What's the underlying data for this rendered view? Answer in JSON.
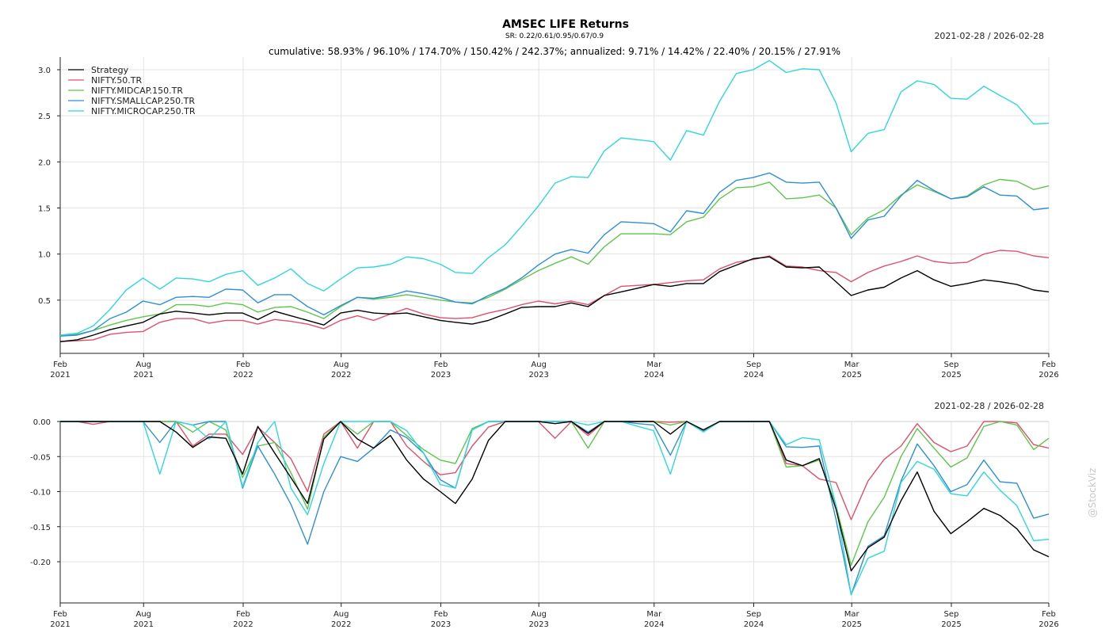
{
  "header": {
    "title": "AMSEC LIFE Returns",
    "sr_line": "SR: 0.22/0.61/0.95/0.67/0.9",
    "cumulative_line": "cumulative: 58.93% / 96.10% / 174.70% / 150.42% / 242.37%; annualized: 9.71% / 14.42% / 22.40% / 20.15% / 27.91%",
    "date_range_top": "2021-02-28 / 2026-02-28",
    "date_range_bottom": "2021-02-28 / 2026-02-28"
  },
  "watermark": "@StockViz",
  "chart_data": [
    {
      "type": "line",
      "title": "AMSEC LIFE Returns",
      "ylim": [
        0,
        3.1
      ],
      "yticks": [
        "0.5",
        "1.0",
        "1.5",
        "2.0",
        "2.5",
        "3.0"
      ],
      "ytick_values": [
        0.5,
        1.0,
        1.5,
        2.0,
        2.5,
        3.0
      ],
      "xlim": [
        "2021-02-28",
        "2026-02-28"
      ],
      "xticks": [
        {
          "date": "2021-02-28",
          "month": "Feb",
          "year": "2021"
        },
        {
          "date": "2021-08-01",
          "month": "Aug",
          "year": "2021"
        },
        {
          "date": "2022-02-01",
          "month": "Feb",
          "year": "2022"
        },
        {
          "date": "2022-08-01",
          "month": "Aug",
          "year": "2022"
        },
        {
          "date": "2023-02-01",
          "month": "Feb",
          "year": "2023"
        },
        {
          "date": "2023-08-01",
          "month": "Aug",
          "year": "2023"
        },
        {
          "date": "2024-03-01",
          "month": "Mar",
          "year": "2024"
        },
        {
          "date": "2024-09-01",
          "month": "Sep",
          "year": "2024"
        },
        {
          "date": "2025-03-01",
          "month": "Mar",
          "year": "2025"
        },
        {
          "date": "2025-09-01",
          "month": "Sep",
          "year": "2025"
        },
        {
          "date": "2026-02-28",
          "month": "Feb",
          "year": "2026"
        }
      ],
      "grid": true,
      "legend": "top-left",
      "x": [
        "2021-02-28",
        "2021-03-31",
        "2021-04-30",
        "2021-05-31",
        "2021-06-30",
        "2021-07-31",
        "2021-08-31",
        "2021-09-30",
        "2021-10-31",
        "2021-11-30",
        "2021-12-31",
        "2022-01-31",
        "2022-02-28",
        "2022-03-31",
        "2022-04-30",
        "2022-05-31",
        "2022-06-30",
        "2022-07-31",
        "2022-08-31",
        "2022-09-30",
        "2022-10-31",
        "2022-11-30",
        "2022-12-31",
        "2023-01-31",
        "2023-02-28",
        "2023-03-31",
        "2023-04-30",
        "2023-05-31",
        "2023-06-30",
        "2023-07-31",
        "2023-08-31",
        "2023-09-30",
        "2023-10-31",
        "2023-11-30",
        "2023-12-31",
        "2024-01-31",
        "2024-02-29",
        "2024-03-31",
        "2024-04-30",
        "2024-05-31",
        "2024-06-30",
        "2024-07-31",
        "2024-08-31",
        "2024-09-30",
        "2024-10-31",
        "2024-11-30",
        "2024-12-31",
        "2025-01-31",
        "2025-02-28",
        "2025-03-31",
        "2025-04-30",
        "2025-05-31",
        "2025-06-30",
        "2025-07-31",
        "2025-08-31",
        "2025-09-30",
        "2025-10-31",
        "2025-11-30",
        "2025-12-31",
        "2026-01-31",
        "2026-02-28"
      ],
      "series": [
        {
          "name": "Strategy",
          "color": "#000000",
          "values": [
            0.05,
            0.07,
            0.12,
            0.18,
            0.22,
            0.26,
            0.35,
            0.38,
            0.36,
            0.34,
            0.36,
            0.36,
            0.29,
            0.38,
            0.33,
            0.28,
            0.23,
            0.36,
            0.39,
            0.36,
            0.35,
            0.36,
            0.32,
            0.28,
            0.26,
            0.24,
            0.28,
            0.35,
            0.42,
            0.43,
            0.43,
            0.47,
            0.43,
            0.55,
            0.59,
            0.63,
            0.67,
            0.65,
            0.68,
            0.68,
            0.81,
            0.88,
            0.95,
            0.97,
            0.86,
            0.85,
            0.86,
            0.7,
            0.55,
            0.61,
            0.64,
            0.74,
            0.82,
            0.72,
            0.65,
            0.68,
            0.72,
            0.7,
            0.67,
            0.61,
            0.59
          ]
        },
        {
          "name": "NIFTY.50.TR",
          "color": "#e0506b",
          "values": [
            0.05,
            0.06,
            0.07,
            0.13,
            0.15,
            0.16,
            0.26,
            0.3,
            0.3,
            0.25,
            0.28,
            0.28,
            0.24,
            0.29,
            0.27,
            0.24,
            0.19,
            0.28,
            0.33,
            0.28,
            0.35,
            0.41,
            0.35,
            0.31,
            0.3,
            0.31,
            0.36,
            0.4,
            0.45,
            0.49,
            0.46,
            0.49,
            0.45,
            0.55,
            0.65,
            0.66,
            0.67,
            0.69,
            0.71,
            0.72,
            0.84,
            0.91,
            0.94,
            0.98,
            0.87,
            0.86,
            0.82,
            0.8,
            0.7,
            0.8,
            0.87,
            0.92,
            0.98,
            0.92,
            0.9,
            0.91,
            1.0,
            1.04,
            1.03,
            0.98,
            0.96
          ]
        },
        {
          "name": "NIFTY.MIDCAP.150.TR",
          "color": "#5dc74b",
          "values": [
            0.12,
            0.13,
            0.17,
            0.23,
            0.28,
            0.32,
            0.35,
            0.45,
            0.45,
            0.43,
            0.47,
            0.45,
            0.37,
            0.42,
            0.43,
            0.37,
            0.3,
            0.43,
            0.53,
            0.51,
            0.53,
            0.56,
            0.53,
            0.5,
            0.48,
            0.47,
            0.53,
            0.62,
            0.72,
            0.82,
            0.9,
            0.97,
            0.89,
            1.08,
            1.22,
            1.22,
            1.22,
            1.21,
            1.35,
            1.4,
            1.6,
            1.72,
            1.73,
            1.78,
            1.6,
            1.61,
            1.64,
            1.5,
            1.21,
            1.39,
            1.48,
            1.64,
            1.75,
            1.68,
            1.6,
            1.63,
            1.75,
            1.81,
            1.79,
            1.7,
            1.74
          ]
        },
        {
          "name": "NIFTY.SMALLCAP.250.TR",
          "color": "#2f8fd6",
          "values": [
            0.11,
            0.12,
            0.17,
            0.3,
            0.37,
            0.49,
            0.45,
            0.53,
            0.54,
            0.53,
            0.62,
            0.61,
            0.47,
            0.56,
            0.56,
            0.43,
            0.34,
            0.44,
            0.53,
            0.52,
            0.55,
            0.6,
            0.57,
            0.53,
            0.48,
            0.46,
            0.55,
            0.63,
            0.74,
            0.88,
            1.0,
            1.05,
            1.01,
            1.21,
            1.35,
            1.34,
            1.33,
            1.24,
            1.47,
            1.44,
            1.67,
            1.8,
            1.83,
            1.88,
            1.78,
            1.77,
            1.78,
            1.5,
            1.17,
            1.37,
            1.41,
            1.63,
            1.8,
            1.69,
            1.6,
            1.62,
            1.73,
            1.64,
            1.63,
            1.48,
            1.5
          ]
        },
        {
          "name": "NIFTY.MICROCAP.250.TR",
          "color": "#2fd8d8",
          "values": [
            0.12,
            0.14,
            0.22,
            0.4,
            0.61,
            0.74,
            0.62,
            0.74,
            0.73,
            0.7,
            0.78,
            0.82,
            0.66,
            0.74,
            0.84,
            0.68,
            0.6,
            0.73,
            0.85,
            0.86,
            0.89,
            0.97,
            0.95,
            0.89,
            0.8,
            0.79,
            0.96,
            1.1,
            1.3,
            1.52,
            1.77,
            1.84,
            1.83,
            2.12,
            2.26,
            2.24,
            2.22,
            2.02,
            2.34,
            2.29,
            2.66,
            2.96,
            3.0,
            3.1,
            2.97,
            3.01,
            3.0,
            2.64,
            2.11,
            2.31,
            2.35,
            2.76,
            2.88,
            2.84,
            2.69,
            2.68,
            2.82,
            2.72,
            2.62,
            2.41,
            2.42
          ]
        }
      ]
    },
    {
      "type": "line",
      "ylim": [
        -0.25,
        0.0
      ],
      "yticks": [
        "-0.20",
        "-0.15",
        "-0.10",
        "-0.05",
        "0.00"
      ],
      "ytick_values": [
        -0.2,
        -0.15,
        -0.1,
        -0.05,
        0.0
      ],
      "grid": true,
      "x_from_first_chart": true,
      "series": [
        {
          "name": "Strategy",
          "color": "#000000",
          "values": [
            0,
            0,
            0,
            0,
            0,
            0,
            0,
            -0.015,
            -0.037,
            -0.022,
            -0.024,
            -0.075,
            -0.007,
            -0.045,
            -0.08,
            -0.117,
            -0.025,
            0,
            -0.025,
            -0.038,
            -0.02,
            -0.055,
            -0.082,
            -0.1,
            -0.117,
            -0.082,
            -0.027,
            0,
            0,
            0,
            -0.003,
            0,
            -0.017,
            0,
            0,
            0,
            0,
            -0.018,
            0,
            -0.012,
            0,
            0,
            0,
            0,
            -0.055,
            -0.063,
            -0.053,
            -0.125,
            -0.213,
            -0.18,
            -0.165,
            -0.113,
            -0.072,
            -0.128,
            -0.16,
            -0.143,
            -0.124,
            -0.134,
            -0.153,
            -0.183,
            -0.193
          ]
        },
        {
          "name": "NIFTY.50.TR",
          "color": "#e0506b",
          "values": [
            0,
            0,
            -0.004,
            0,
            0,
            0,
            0,
            0,
            -0.035,
            -0.018,
            -0.018,
            -0.047,
            -0.008,
            -0.03,
            -0.053,
            -0.1,
            -0.018,
            0,
            -0.038,
            0,
            0,
            -0.035,
            -0.057,
            -0.076,
            -0.073,
            -0.035,
            -0.008,
            0,
            0,
            0,
            -0.024,
            0,
            -0.02,
            0,
            0,
            0,
            0,
            -0.001,
            0,
            -0.013,
            0,
            0,
            0,
            0,
            -0.06,
            -0.063,
            -0.082,
            -0.087,
            -0.14,
            -0.085,
            -0.054,
            -0.035,
            -0.003,
            -0.03,
            -0.043,
            -0.035,
            0,
            0,
            -0.002,
            -0.033,
            -0.038
          ]
        },
        {
          "name": "NIFTY.MIDCAP.150.TR",
          "color": "#5dc74b",
          "values": [
            0,
            0,
            0,
            0,
            0,
            0,
            0,
            0,
            -0.015,
            0,
            -0.012,
            -0.08,
            -0.035,
            -0.03,
            -0.073,
            -0.125,
            -0.022,
            0,
            -0.018,
            0,
            0,
            -0.02,
            -0.04,
            -0.055,
            -0.06,
            -0.01,
            0,
            0,
            0,
            0,
            0,
            0,
            -0.038,
            0,
            0,
            0,
            0,
            -0.005,
            0,
            -0.012,
            0,
            0,
            0,
            0,
            -0.065,
            -0.063,
            -0.055,
            -0.12,
            -0.205,
            -0.143,
            -0.108,
            -0.05,
            -0.01,
            -0.038,
            -0.065,
            -0.052,
            -0.007,
            0,
            -0.005,
            -0.04,
            -0.024
          ]
        },
        {
          "name": "NIFTY.SMALLCAP.250.TR",
          "color": "#2f8fd6",
          "values": [
            0,
            0,
            0,
            0,
            0,
            0,
            -0.03,
            0,
            -0.005,
            0,
            0,
            -0.095,
            -0.035,
            -0.075,
            -0.118,
            -0.175,
            -0.1,
            -0.05,
            -0.057,
            -0.038,
            -0.012,
            -0.023,
            -0.045,
            -0.083,
            -0.095,
            -0.012,
            0,
            0,
            0,
            0,
            0,
            0,
            -0.015,
            0,
            0,
            -0.003,
            -0.005,
            -0.048,
            0,
            -0.013,
            0,
            0,
            0,
            0,
            -0.036,
            -0.037,
            -0.035,
            -0.14,
            -0.247,
            -0.178,
            -0.163,
            -0.085,
            -0.032,
            -0.063,
            -0.1,
            -0.09,
            -0.055,
            -0.086,
            -0.088,
            -0.138,
            -0.132
          ]
        },
        {
          "name": "NIFTY.MICROCAP.250.TR",
          "color": "#2fd8d8",
          "values": [
            0,
            0,
            0,
            0,
            0,
            0,
            -0.075,
            0,
            -0.005,
            -0.025,
            0,
            -0.093,
            -0.03,
            0,
            -0.095,
            -0.133,
            -0.06,
            0,
            0,
            0,
            0,
            -0.013,
            -0.045,
            -0.09,
            -0.095,
            -0.012,
            0,
            0,
            0,
            0,
            0,
            0,
            -0.005,
            0,
            0,
            -0.007,
            -0.013,
            -0.075,
            0,
            -0.015,
            0,
            0,
            0,
            0,
            -0.033,
            -0.023,
            -0.026,
            -0.12,
            -0.247,
            -0.195,
            -0.185,
            -0.087,
            -0.057,
            -0.068,
            -0.103,
            -0.106,
            -0.072,
            -0.098,
            -0.12,
            -0.17,
            -0.168
          ]
        }
      ]
    }
  ]
}
